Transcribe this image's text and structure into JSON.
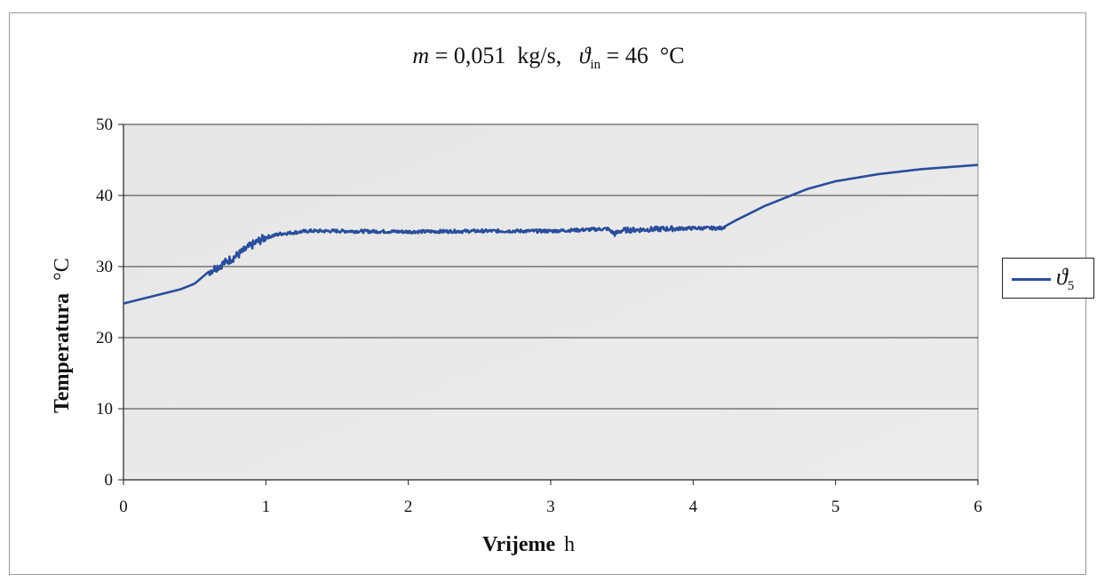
{
  "chart_data": {
    "type": "line",
    "title": {
      "mass_symbol": "m",
      "mass_text": " = 0,051  kg/s,   ",
      "theta_symbol": "ϑ",
      "theta_sub": "in",
      "theta_text": " = 46  °C"
    },
    "xlabel": "Vrijeme",
    "xunit": "h",
    "ylabel": "Temperatura",
    "yunit": "°C",
    "xlim": [
      0,
      6
    ],
    "ylim": [
      0,
      50
    ],
    "xticks": [
      "0",
      "1",
      "2",
      "3",
      "4",
      "5",
      "6"
    ],
    "yticks": [
      "0",
      "10",
      "20",
      "30",
      "40",
      "50"
    ],
    "grid": "horizontal",
    "legend_position": "right",
    "series": [
      {
        "name_symbol": "ϑ",
        "name_sub": "5",
        "color": "#2a4d9c",
        "x": [
          0,
          0.2,
          0.4,
          0.5,
          0.6,
          0.7,
          0.8,
          0.9,
          0.95,
          1.0,
          1.1,
          1.2,
          1.3,
          1.5,
          2.0,
          2.5,
          3.0,
          3.4,
          3.45,
          3.5,
          3.8,
          4.0,
          4.2,
          4.3,
          4.5,
          4.8,
          5.0,
          5.3,
          5.6,
          5.8,
          6.0
        ],
        "y": [
          24.8,
          25.8,
          26.8,
          27.6,
          29.3,
          30.4,
          31.6,
          33.0,
          33.6,
          34.1,
          34.6,
          34.8,
          35.0,
          35.0,
          34.9,
          35.0,
          35.0,
          35.3,
          34.6,
          35.1,
          35.3,
          35.4,
          35.4,
          36.5,
          38.5,
          40.9,
          42.0,
          43.0,
          43.7,
          44.0,
          44.3
        ]
      }
    ]
  }
}
